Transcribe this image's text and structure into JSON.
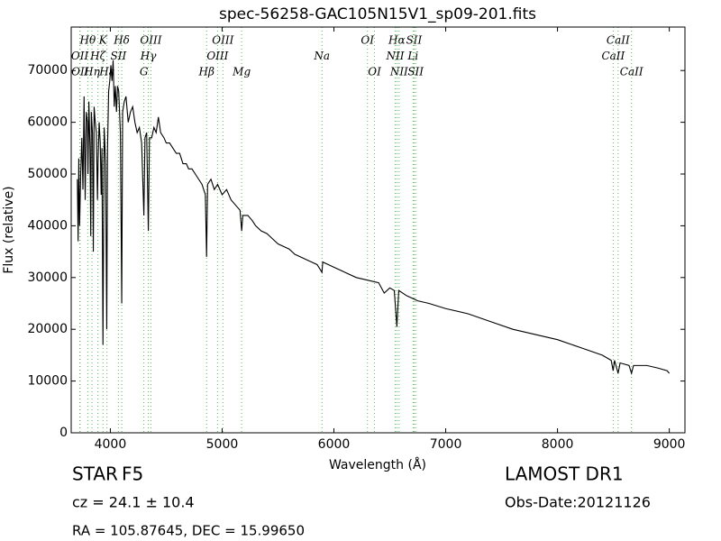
{
  "chart_data": {
    "type": "line",
    "title": "spec-56258-GAC105N15V1_sp09-201.fits",
    "x_label": "Wavelength (Å)",
    "y_label": "Flux (relative)",
    "xlim": [
      3650,
      9140
    ],
    "ylim": [
      0,
      78400
    ],
    "xticks": [
      4000,
      5000,
      6000,
      7000,
      8000,
      9000
    ],
    "yticks": [
      0,
      10000,
      20000,
      30000,
      40000,
      50000,
      60000,
      70000
    ],
    "color": "#000000",
    "marker_color": "#55bb55",
    "x": [
      3705,
      3712,
      3718,
      3725,
      3735,
      3745,
      3755,
      3765,
      3775,
      3785,
      3795,
      3800,
      3808,
      3818,
      3825,
      3830,
      3840,
      3848,
      3855,
      3865,
      3875,
      3885,
      3890,
      3900,
      3910,
      3918,
      3925,
      3934,
      3945,
      3958,
      3968,
      3975,
      3985,
      3995,
      4005,
      4015,
      4025,
      4035,
      4045,
      4055,
      4065,
      4075,
      4090,
      4102,
      4110,
      4125,
      4140,
      4160,
      4180,
      4200,
      4220,
      4240,
      4260,
      4280,
      4300,
      4310,
      4325,
      4340,
      4350,
      4370,
      4390,
      4410,
      4430,
      4450,
      4480,
      4500,
      4530,
      4560,
      4590,
      4620,
      4650,
      4680,
      4700,
      4730,
      4760,
      4790,
      4820,
      4850,
      4861,
      4870,
      4900,
      4930,
      4960,
      5000,
      5040,
      5080,
      5120,
      5160,
      5175,
      5185,
      5230,
      5270,
      5300,
      5350,
      5400,
      5450,
      5500,
      5550,
      5600,
      5650,
      5700,
      5750,
      5800,
      5850,
      5893,
      5900,
      6000,
      6100,
      6200,
      6300,
      6400,
      6450,
      6500,
      6540,
      6563,
      6580,
      6650,
      6750,
      6850,
      7000,
      7200,
      7400,
      7600,
      7800,
      8000,
      8200,
      8400,
      8480,
      8498,
      8510,
      8542,
      8560,
      8640,
      8662,
      8680,
      8800,
      8900,
      8980,
      9000
    ],
    "values": [
      49000,
      37000,
      53000,
      40000,
      50000,
      57000,
      47000,
      65000,
      45000,
      62000,
      60000,
      50000,
      64000,
      55000,
      38000,
      62000,
      58000,
      35000,
      63000,
      60000,
      58000,
      45000,
      52000,
      60000,
      56000,
      46000,
      55000,
      17000,
      59000,
      52000,
      20000,
      55000,
      66000,
      68000,
      71000,
      68000,
      72000,
      63000,
      67000,
      62000,
      67000,
      66000,
      58000,
      25000,
      62000,
      64000,
      65000,
      60000,
      62000,
      63000,
      60000,
      58000,
      59000,
      56000,
      42000,
      57000,
      58000,
      39000,
      57000,
      57000,
      59000,
      58000,
      61000,
      58000,
      57000,
      56000,
      56000,
      55000,
      54000,
      54000,
      52000,
      52000,
      51000,
      51000,
      50000,
      49000,
      48000,
      46000,
      34000,
      48000,
      49000,
      47000,
      48000,
      46000,
      47000,
      45000,
      44000,
      43000,
      39000,
      42000,
      42000,
      41000,
      40000,
      39000,
      38500,
      37500,
      36500,
      36000,
      35500,
      34500,
      34000,
      33500,
      33000,
      32500,
      31000,
      33000,
      32000,
      31000,
      30000,
      29500,
      29000,
      27000,
      28000,
      27500,
      20500,
      27500,
      26500,
      25500,
      25000,
      24000,
      23000,
      21500,
      20000,
      19000,
      18000,
      16500,
      15000,
      14000,
      12000,
      14000,
      11500,
      13500,
      13000,
      11500,
      13000,
      13000,
      12500,
      12000,
      11500
    ],
    "line_markers": [
      [
        {
          "label": "Hθ",
          "wavelength": 3798
        },
        {
          "label": "K",
          "wavelength": 3934
        },
        {
          "label": "Hδ",
          "wavelength": 4102
        },
        {
          "label": "OIII",
          "wavelength": 4363
        },
        {
          "label": "OIII",
          "wavelength": 5007
        },
        {
          "label": "OI",
          "wavelength": 6300
        },
        {
          "label": "Hα",
          "wavelength": 6563
        },
        {
          "label": "SII",
          "wavelength": 6717
        },
        {
          "label": "CaII",
          "wavelength": 8542
        }
      ],
      [
        {
          "label": "OII",
          "wavelength": 3727
        },
        {
          "label": "Hζ",
          "wavelength": 3889
        },
        {
          "label": "SII",
          "wavelength": 4072
        },
        {
          "label": "Hγ",
          "wavelength": 4340
        },
        {
          "label": "OIII",
          "wavelength": 4959
        },
        {
          "label": "Na",
          "wavelength": 5893
        },
        {
          "label": "NII",
          "wavelength": 6548
        },
        {
          "label": "Li",
          "wavelength": 6708
        },
        {
          "label": "CaII",
          "wavelength": 8498
        }
      ],
      [
        {
          "label": "OII",
          "wavelength": 3729
        },
        {
          "label": "Hη",
          "wavelength": 3835
        },
        {
          "label": "Hε",
          "wavelength": 3970
        },
        {
          "label": "G",
          "wavelength": 4300
        },
        {
          "label": "Hβ",
          "wavelength": 4861
        },
        {
          "label": "Mg",
          "wavelength": 5175
        },
        {
          "label": "OI",
          "wavelength": 6363
        },
        {
          "label": "NII",
          "wavelength": 6583
        },
        {
          "label": "SII",
          "wavelength": 6731
        },
        {
          "label": "CaII",
          "wavelength": 8662
        }
      ]
    ],
    "annotations": {
      "class": "STAR",
      "subclass": "F5",
      "redshift": "cz = 24.1 ± 10.4",
      "position": "RA = 105.87645, DEC = 15.99650",
      "release": "LAMOST DR1",
      "obs_date": "Obs-Date:20121126"
    }
  }
}
